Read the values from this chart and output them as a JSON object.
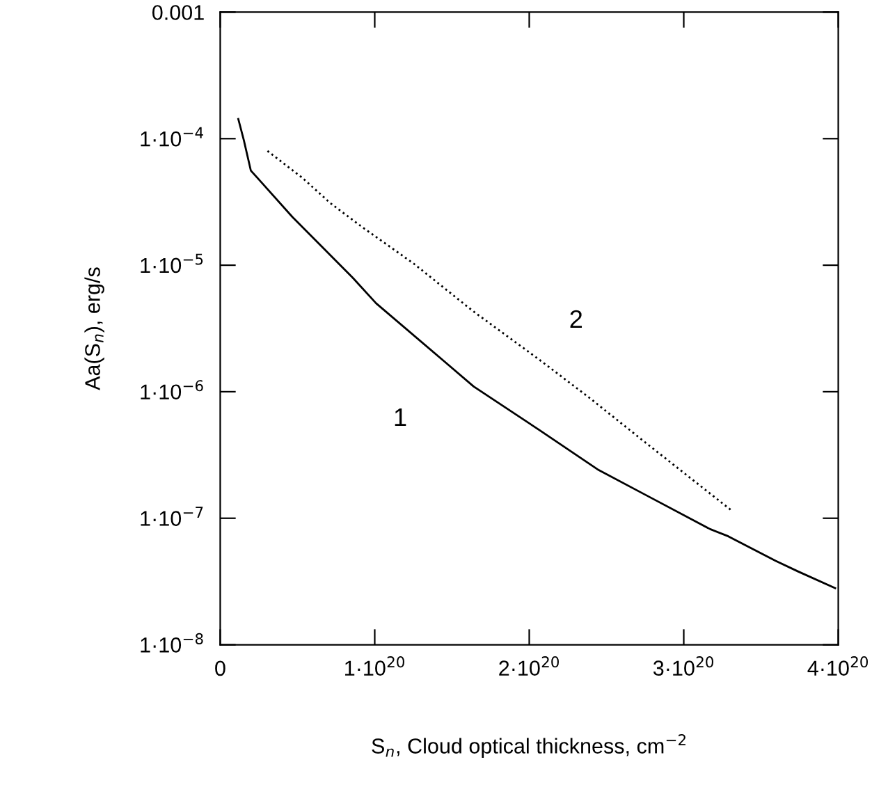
{
  "chart_data": {
    "type": "line",
    "xlabel": "S$_{n}$, Cloud optical thickness, cm$^{−2}$",
    "ylabel": "Aa(S$_{n}$), erg/s",
    "log": "y",
    "grid": false,
    "legend": false,
    "xlim": [
      0,
      4e+20
    ],
    "xticks": [
      {
        "value": 0,
        "label": "0"
      },
      {
        "value": 1e+20,
        "label": "1·10$^{20}$"
      },
      {
        "value": 2e+20,
        "label": "2·10$^{20}$"
      },
      {
        "value": 3e+20,
        "label": "3·10$^{20}$"
      },
      {
        "value": 4e+20,
        "label": "4·10$^{20}$"
      }
    ],
    "ylim": [
      1e-08,
      0.001
    ],
    "yticks": [
      {
        "value": 1e-08,
        "label": "1·10$^{−8}$"
      },
      {
        "value": 1e-07,
        "label": "1·10$^{−7}$"
      },
      {
        "value": 1e-06,
        "label": "1·10$^{−6}$"
      },
      {
        "value": 1e-05,
        "label": "1·10$^{−5}$"
      },
      {
        "value": 0.0001,
        "label": "1·10$^{−4}$"
      },
      {
        "value": 0.001,
        "label": "0.001"
      }
    ],
    "series": [
      {
        "name": "1",
        "color": "#000000",
        "line_style": "solid",
        "x": [
          1.17e+19,
          1.53e+19,
          1.98e+19,
          2.61e+19,
          4.68e+19,
          8.56e+19,
          1.009e+20,
          1.459e+20,
          1.64e+20,
          2.063e+20,
          2.45e+20,
          2.748e+20,
          3.171e+20,
          3.288e+20,
          3.595e+20,
          3.739e+20,
          3.98e+20
        ],
        "values": [
          0.000143,
          9.7e-05,
          5.6e-05,
          4.6e-05,
          2.4e-05,
          8e-06,
          5e-06,
          1.7e-06,
          1.1e-06,
          5e-07,
          2.4e-07,
          1.54e-07,
          8.2e-08,
          7.2e-08,
          4.6e-08,
          3.8e-08,
          2.8e-08
        ]
      },
      {
        "name": "2",
        "color": "#000000",
        "line_style": "dotted",
        "x": [
          3.06e+19,
          5.32e+19,
          7.12e+19,
          9.19e+19,
          1.252e+20,
          1.64e+20,
          2.063e+20,
          2.387e+20,
          2.748e+20,
          3.306e+20
        ],
        "values": [
          8e-05,
          4.9e-05,
          3.1e-05,
          2e-05,
          1.03e-05,
          4.3e-06,
          1.8e-06,
          9e-07,
          4e-07,
          1.16e-07
        ]
      }
    ]
  }
}
